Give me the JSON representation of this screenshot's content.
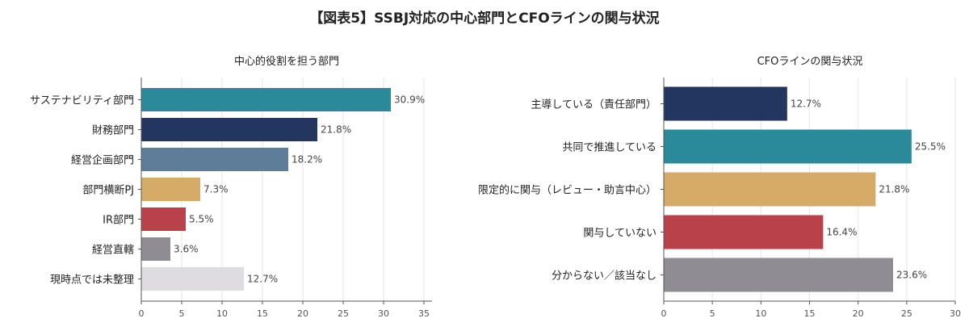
{
  "figure_title": "【図表5】SSBJ対応の中心部門とCFOラインの関与状況",
  "chart_data": [
    {
      "type": "bar",
      "orientation": "horizontal",
      "title": "中心的役割を担う部門",
      "xlabel": "",
      "ylabel": "",
      "categories": [
        "サステナビリティ部門",
        "財務部門",
        "経営企画部門",
        "部門横断PJ",
        "IR部門",
        "経営直轄",
        "現時点では未整理"
      ],
      "values": [
        30.9,
        21.8,
        18.2,
        7.3,
        5.5,
        3.6,
        12.7
      ],
      "value_labels": [
        "30.9%",
        "21.8%",
        "18.2%",
        "7.3%",
        "5.5%",
        "3.6%",
        "12.7%"
      ],
      "colors": [
        "#2a8a99",
        "#23365f",
        "#5d7d99",
        "#d6aa67",
        "#b9414a",
        "#8f8d93",
        "#dedbe1"
      ],
      "xlim": [
        0,
        36
      ],
      "xticks": [
        0,
        5,
        10,
        15,
        20,
        25,
        30,
        35
      ],
      "xtick_labels": [
        "0",
        "5",
        "10",
        "15",
        "20",
        "25",
        "30",
        "35"
      ],
      "grid": true
    },
    {
      "type": "bar",
      "orientation": "horizontal",
      "title": "CFOラインの関与状況",
      "xlabel": "",
      "ylabel": "",
      "categories": [
        "主導している（責任部門）",
        "共同で推進している",
        "限定的に関与（レビュー・助言中心）",
        "関与していない",
        "分からない／該当なし"
      ],
      "values": [
        12.7,
        25.5,
        21.8,
        16.4,
        23.6
      ],
      "value_labels": [
        "12.7%",
        "25.5%",
        "21.8%",
        "16.4%",
        "23.6%"
      ],
      "colors": [
        "#23365f",
        "#2a8a99",
        "#d6aa67",
        "#b9414a",
        "#8f8d93"
      ],
      "xlim": [
        0,
        30
      ],
      "xticks": [
        0,
        5,
        10,
        15,
        20,
        25,
        30
      ],
      "xtick_labels": [
        "0",
        "5",
        "10",
        "15",
        "20",
        "25",
        "30"
      ],
      "grid": true
    }
  ]
}
